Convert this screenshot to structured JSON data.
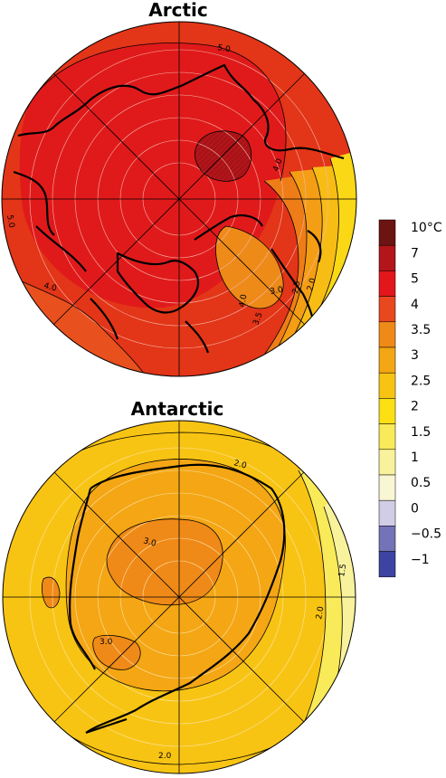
{
  "maps": {
    "arctic": {
      "title": "Arctic",
      "contour_labels": [
        "5.0",
        "5.0",
        "4.0",
        "4.0",
        "3.0",
        "2.5",
        "2.0",
        "4.0",
        "3.5"
      ]
    },
    "antarctic": {
      "title": "Antarctic",
      "contour_labels": [
        "2.0",
        "3.0",
        "3.0",
        "2.0",
        "1.5",
        "2.0"
      ]
    }
  },
  "legend": {
    "levels": [
      {
        "label": "10°C",
        "color": "#6b1412"
      },
      {
        "label": "7",
        "color": "#b2151a"
      },
      {
        "label": "5",
        "color": "#e2161b"
      },
      {
        "label": "4",
        "color": "#e9481f"
      },
      {
        "label": "3.5",
        "color": "#ef8a18"
      },
      {
        "label": "3",
        "color": "#f4a614"
      },
      {
        "label": "2.5",
        "color": "#f8c414"
      },
      {
        "label": "2",
        "color": "#fde014"
      },
      {
        "label": "1.5",
        "color": "#f8ea58"
      },
      {
        "label": "1",
        "color": "#f9f29c"
      },
      {
        "label": "0.5",
        "color": "#f8f6d3"
      },
      {
        "label": "0",
        "color": "#d2cde6"
      },
      {
        "label": "−0.5",
        "color": "#7473b8"
      },
      {
        "label": "−1",
        "color": "#3c44a3"
      }
    ]
  }
}
